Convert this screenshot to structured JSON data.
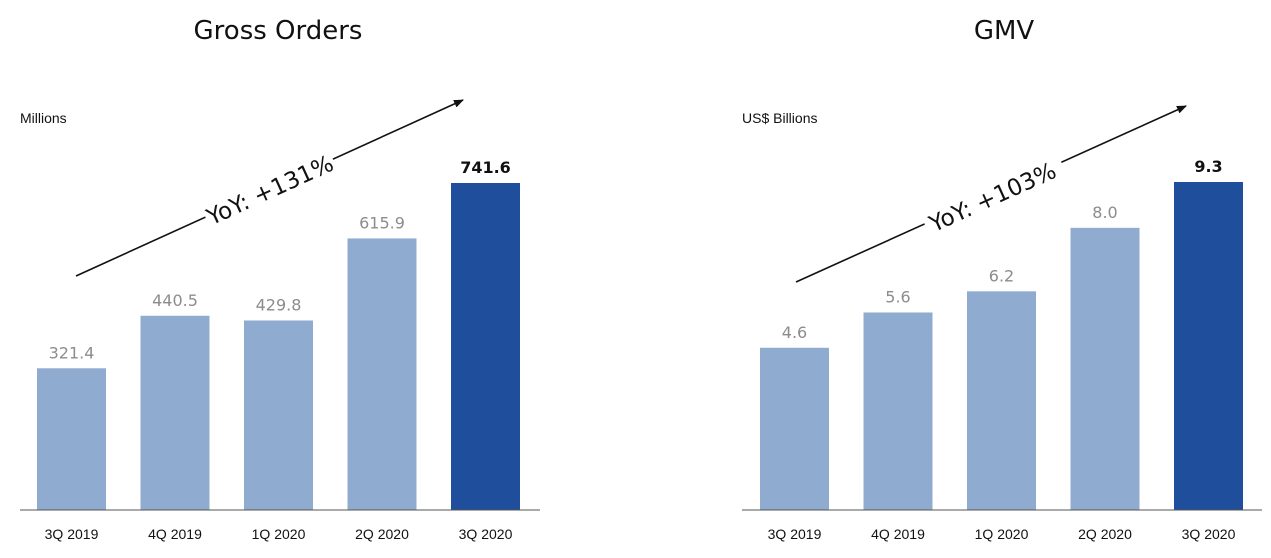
{
  "colors": {
    "bar": "#90abd0",
    "bar_highlight": "#1f4f9c",
    "axis": "#555555",
    "label": "#8c8c8c"
  },
  "chart_data": [
    {
      "type": "bar",
      "title": "Gross Orders",
      "ylabel": "Millions",
      "categories": [
        "3Q 2019",
        "4Q 2019",
        "1Q 2020",
        "2Q 2020",
        "3Q 2020"
      ],
      "values": [
        321.4,
        440.5,
        429.8,
        615.9,
        741.6
      ],
      "value_labels": [
        "321.4",
        "440.5",
        "429.8",
        "615.9",
        "741.6"
      ],
      "highlight_index": 4,
      "annotation": "YoY: +131%",
      "ylim": [
        0,
        741.6
      ]
    },
    {
      "type": "bar",
      "title": "GMV",
      "ylabel": "US$ Billions",
      "categories": [
        "3Q 2019",
        "4Q 2019",
        "1Q 2020",
        "2Q 2020",
        "3Q 2020"
      ],
      "values": [
        4.6,
        5.6,
        6.2,
        8.0,
        9.3
      ],
      "value_labels": [
        "4.6",
        "5.6",
        "6.2",
        "8.0",
        "9.3"
      ],
      "highlight_index": 4,
      "annotation": "YoY: +103%",
      "ylim": [
        0,
        9.3
      ]
    }
  ]
}
